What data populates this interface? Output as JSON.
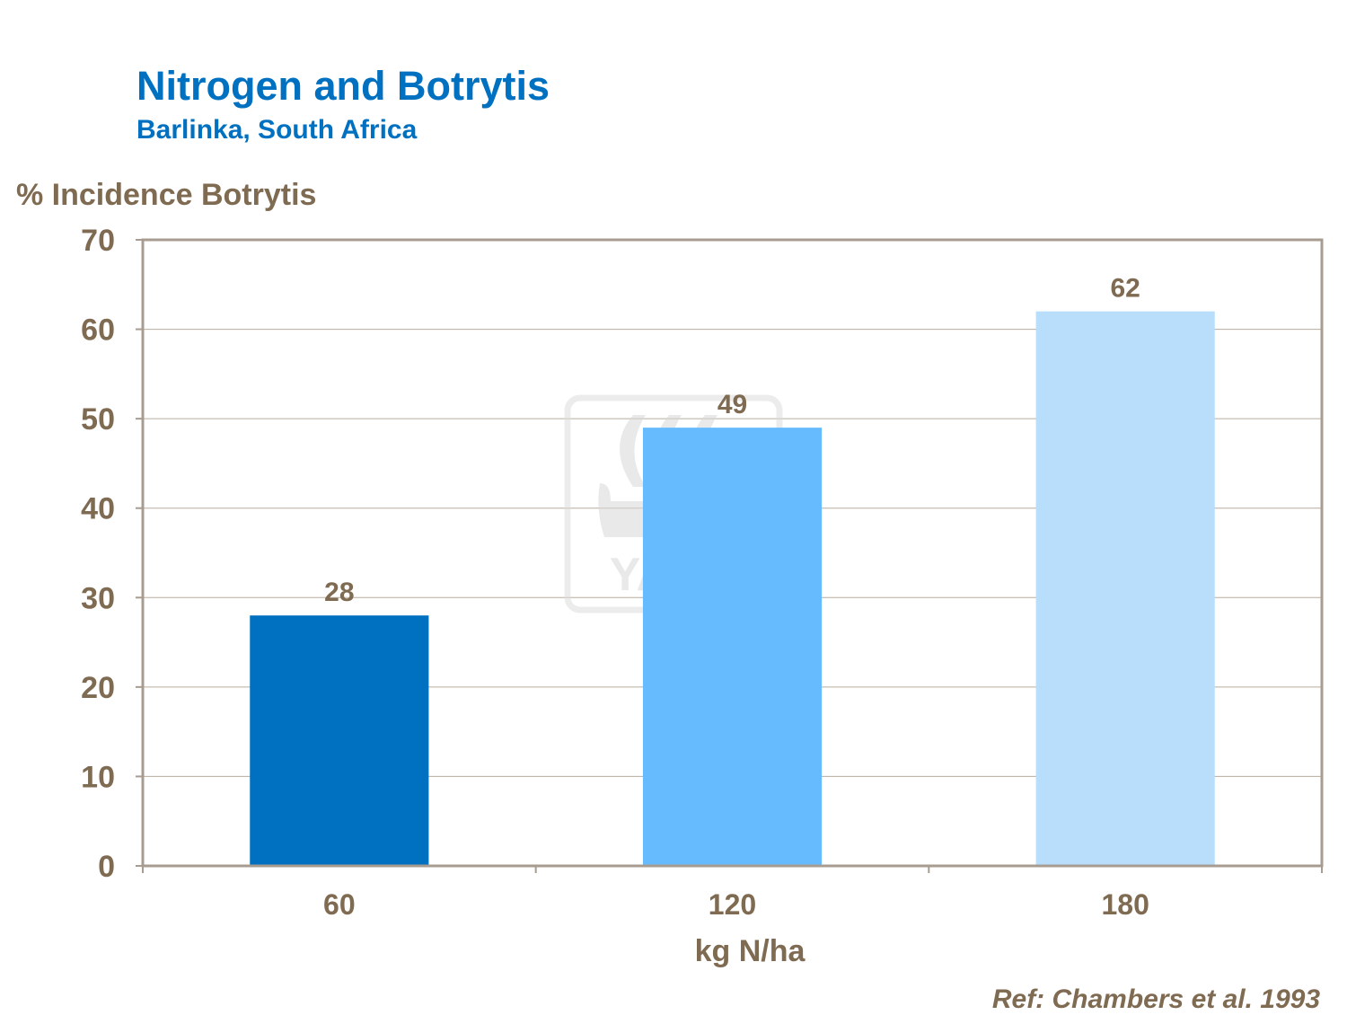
{
  "chart_data": {
    "type": "bar",
    "title": "Nitrogen and Botrytis",
    "subtitle": "Barlinka, South Africa",
    "ylabel": "% Incidence Botrytis",
    "xlabel": "kg N/ha",
    "categories": [
      "60",
      "120",
      "180"
    ],
    "values": [
      28,
      49,
      62
    ],
    "bar_colors": [
      "#0070C0",
      "#66BBFF",
      "#B8DEFC"
    ],
    "ylim": [
      0,
      70
    ],
    "yticks": [
      0,
      10,
      20,
      30,
      40,
      50,
      60,
      70
    ],
    "grid": true,
    "legend": "none",
    "data_labels": true,
    "reference": "Ref: Chambers et al. 1993"
  },
  "colors": {
    "title": "#0070C0",
    "text": "#7F6A52",
    "grid": "#B8AC9E",
    "axis": "#A89C90"
  },
  "watermark": {
    "text": "YARA",
    "icon": "yara-viking-ship-logo"
  }
}
